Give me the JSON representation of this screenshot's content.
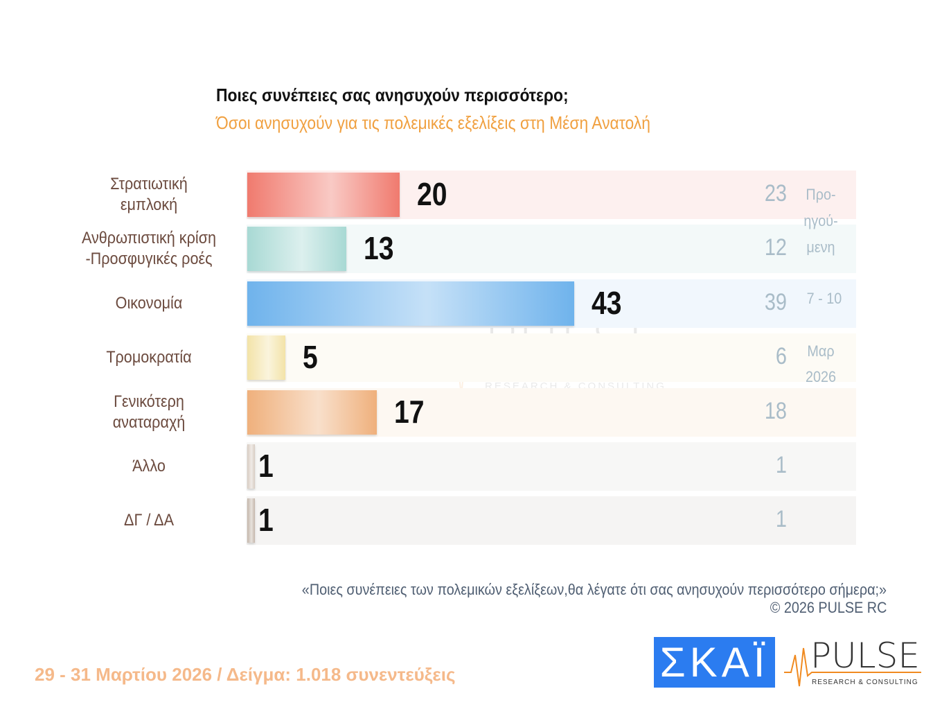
{
  "title": "Ποιες συνέπειες σας ανησυχούν περισσότερο;",
  "subtitle": "Όσοι ανησυχούν για τις πολεμικές εξελίξεις στη Μέση Ανατολή",
  "chart_data": {
    "type": "bar",
    "orientation": "horizontal",
    "title": "Ποιες συνέπειες σας ανησυχούν περισσότερο;",
    "categories": [
      "Στρατιωτική εμπλοκή",
      "Ανθρωπιστική κρίση -Προσφυγικές ροές",
      "Οικονομία",
      "Τρομοκρατία",
      "Γενικότερη αναταραχή",
      "Άλλο",
      "ΔΓ / ΔΑ"
    ],
    "category_lines": [
      [
        "Στρατιωτική",
        "εμπλοκή"
      ],
      [
        "Ανθρωπιστική κρίση",
        "-Προσφυγικές ροές"
      ],
      [
        "Οικονομία"
      ],
      [
        "Τρομοκρατία"
      ],
      [
        "Γενικότερη",
        "αναταραχή"
      ],
      [
        "Άλλο"
      ],
      [
        "ΔΓ / ΔΑ"
      ]
    ],
    "values": [
      20,
      13,
      43,
      5,
      17,
      1,
      1
    ],
    "previous_values": [
      "23",
      "12",
      "39",
      "6",
      "18",
      "1",
      "1"
    ],
    "previous_label": [
      "Προ-",
      "ηγού-",
      "μενη",
      "7 - 10",
      "Μαρ",
      "2026"
    ],
    "colors": [
      "#f07a6e",
      "#a8d9d4",
      "#6fb3ec",
      "#f3e3a8",
      "#efb07c",
      "#d8ccc2",
      "#c4b6aa"
    ],
    "bg_colors": [
      "#fdf0ef",
      "#f3f9f9",
      "#f1f7fd",
      "#fdfbf5",
      "#fdf8f2",
      "#f7f7f6",
      "#f5f4f3"
    ],
    "xlim": [
      0,
      43
    ],
    "grid": false
  },
  "footer_note": {
    "question": "«Ποιες συνέπειες των πολεμικών εξελίξεων,θα λέγατε ότι σας ανησυχούν περισσότερο σήμερα;»",
    "copyright": "©  2026  PULSE RC"
  },
  "footer": "29 - 31  Μαρτίου 2026  /  Δείγμα:  1.018 συνεντεύξεις",
  "logos": {
    "skai": "ΣΚΑΪ",
    "pulse": "PULSE",
    "pulse_sub": "RESEARCH & CONSULTING",
    "pulse_kosmon": "KOSMON"
  }
}
